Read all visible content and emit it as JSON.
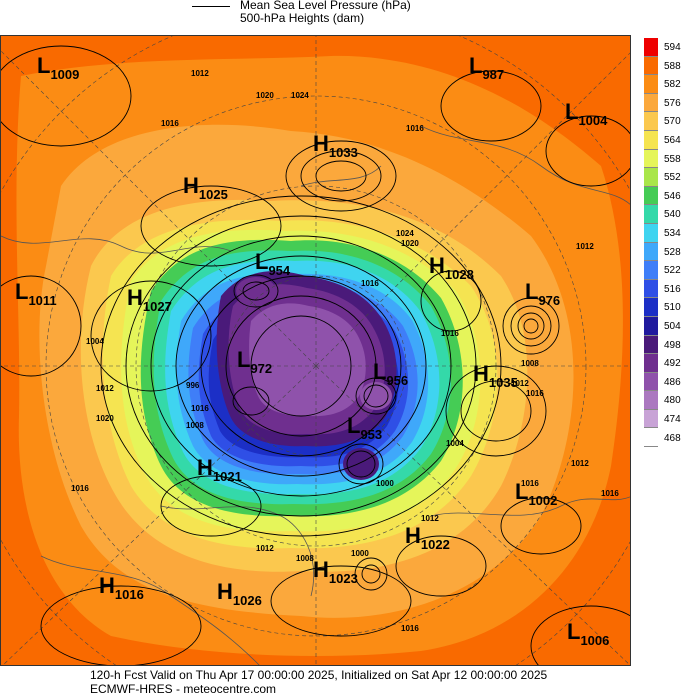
{
  "header": {
    "legend_mslp": "Mean Sea Level Pressure (hPa)",
    "legend_500": "500-hPa Heights (dam)"
  },
  "footer": {
    "line1": "120-h Fcst Valid on Thu Apr 17 00:00:00 2025, Initialized on Sat Apr 12 00:00:00 2025",
    "line2": "ECMWF-HRES - meteocentre.com"
  },
  "colorbar": {
    "labels": [
      "594",
      "588",
      "582",
      "576",
      "570",
      "564",
      "558",
      "552",
      "546",
      "540",
      "534",
      "528",
      "522",
      "516",
      "510",
      "504",
      "498",
      "492",
      "486",
      "480",
      "474",
      "468"
    ],
    "colors": [
      "#ee0000",
      "#f96a00",
      "#fb8c14",
      "#fba83c",
      "#fbc84e",
      "#f5e451",
      "#e5f55a",
      "#a9e64a",
      "#45cc55",
      "#34d9a9",
      "#3fd4f0",
      "#3fa8fa",
      "#3f7ef8",
      "#2f4fe6",
      "#1c2fc6",
      "#201a9e",
      "#4a1a7a",
      "#6f2f8f",
      "#8f52ab",
      "#ab78c0",
      "#c8a3d6",
      "#ffffff"
    ]
  },
  "pressure_systems": [
    {
      "type": "L",
      "value": "1009"
    },
    {
      "type": "L",
      "value": "987"
    },
    {
      "type": "L",
      "value": "1004"
    },
    {
      "type": "H",
      "value": "1033"
    },
    {
      "type": "H",
      "value": "1025"
    },
    {
      "type": "L",
      "value": "954"
    },
    {
      "type": "H",
      "value": "1028"
    },
    {
      "type": "L",
      "value": "1011"
    },
    {
      "type": "H",
      "value": "1027"
    },
    {
      "type": "L",
      "value": "976"
    },
    {
      "type": "L",
      "value": "972"
    },
    {
      "type": "L",
      "value": "956"
    },
    {
      "type": "H",
      "value": "1035"
    },
    {
      "type": "L",
      "value": "953"
    },
    {
      "type": "H",
      "value": "1021"
    },
    {
      "type": "L",
      "value": "1002"
    },
    {
      "type": "H",
      "value": "1022"
    },
    {
      "type": "H",
      "value": "1023"
    },
    {
      "type": "H",
      "value": "1016"
    },
    {
      "type": "H",
      "value": "1026"
    },
    {
      "type": "L",
      "value": "1006"
    }
  ],
  "isobar_labels": [
    "1012",
    "1016",
    "1020",
    "1024",
    "1016",
    "1012",
    "1016",
    "1020",
    "1004",
    "1012",
    "996",
    "1008",
    "1016",
    "1020",
    "1024",
    "1016",
    "1012",
    "1016",
    "1008",
    "1000",
    "1004",
    "1016",
    "1012",
    "1016",
    "1016",
    "1012",
    "1008",
    "1012",
    "1000",
    "1016"
  ]
}
